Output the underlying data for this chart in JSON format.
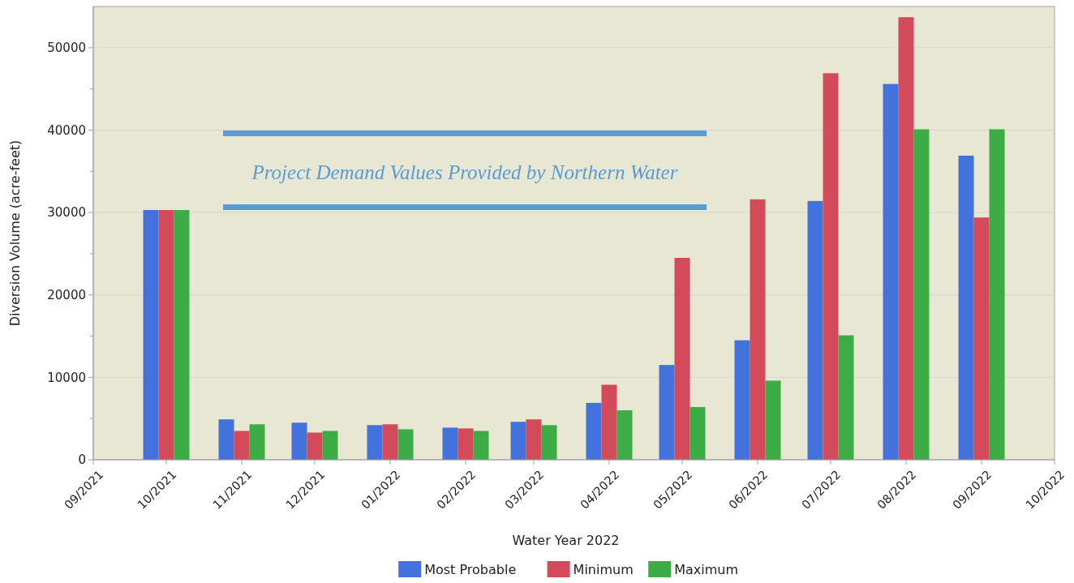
{
  "chart_data": {
    "type": "bar",
    "xlabel": "Water Year 2022",
    "ylabel": "Diversion Volume (acre-feet)",
    "x": [
      "2021-10",
      "2021-11",
      "2021-12",
      "2022-01",
      "2022-02",
      "2022-03",
      "2022-04",
      "2022-05",
      "2022-06",
      "2022-07",
      "2022-08",
      "2022-09"
    ],
    "series": [
      {
        "name": "Most Probable",
        "color": "#4372dc",
        "values": [
          30300,
          4900,
          4500,
          4200,
          3900,
          4600,
          6900,
          11500,
          14500,
          31400,
          45600,
          36900
        ]
      },
      {
        "name": "Minimum",
        "color": "#d34a5a",
        "values": [
          30300,
          3500,
          3300,
          4300,
          3800,
          4900,
          9100,
          24500,
          31600,
          46900,
          53700,
          29400
        ]
      },
      {
        "name": "Maximum",
        "color": "#3dac46",
        "values": [
          30300,
          4300,
          3500,
          3700,
          3500,
          4200,
          6000,
          6400,
          9600,
          15100,
          40100,
          40100
        ]
      }
    ],
    "xlim": [
      "2021-09",
      "2022-10"
    ],
    "xticks": [
      {
        "value": "2021-09",
        "label": "09/2021"
      },
      {
        "value": "2021-10",
        "label": "10/2021"
      },
      {
        "value": "2021-11",
        "label": "11/2021"
      },
      {
        "value": "2021-12",
        "label": "12/2021"
      },
      {
        "value": "2022-01",
        "label": "01/2022"
      },
      {
        "value": "2022-02",
        "label": "02/2022"
      },
      {
        "value": "2022-03",
        "label": "03/2022"
      },
      {
        "value": "2022-04",
        "label": "04/2022"
      },
      {
        "value": "2022-05",
        "label": "05/2022"
      },
      {
        "value": "2022-06",
        "label": "06/2022"
      },
      {
        "value": "2022-07",
        "label": "07/2022"
      },
      {
        "value": "2022-08",
        "label": "08/2022"
      },
      {
        "value": "2022-09",
        "label": "09/2022"
      },
      {
        "value": "2022-10",
        "label": "10/2022"
      }
    ],
    "ylim": [
      0,
      55000
    ],
    "yticks": [
      0,
      {
        "value": 5000,
        "label": null
      },
      10000,
      {
        "value": 15000,
        "label": null
      },
      20000,
      {
        "value": 25000,
        "label": null
      },
      30000,
      {
        "value": 35000,
        "label": null
      },
      40000,
      {
        "value": 45000,
        "label": null
      },
      50000
    ],
    "grid": "y",
    "legend": "bottom",
    "annotations": [
      "Project Demand Values Provided by Northern Water"
    ]
  }
}
